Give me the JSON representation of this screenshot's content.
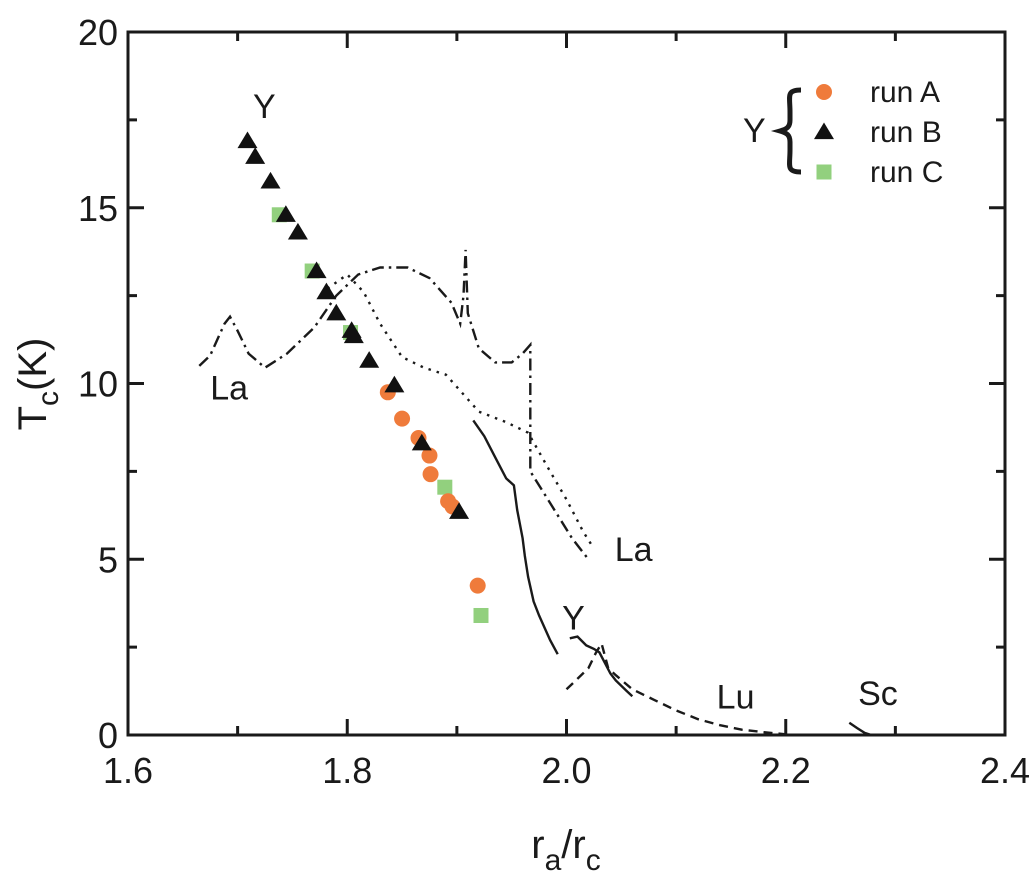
{
  "chart_data": {
    "type": "scatter",
    "title": "",
    "xlabel": {
      "base": "r",
      "base_sub": "a",
      "sep": "/r",
      "sep_sub": "c"
    },
    "ylabel": {
      "base": "T",
      "sub": "c",
      "rest": "(K)"
    },
    "xlim": [
      1.6,
      2.4
    ],
    "ylim": [
      0,
      20
    ],
    "xticks": [
      "1.6",
      "1.8",
      "2.0",
      "2.2",
      "2.4"
    ],
    "yticks": [
      "0",
      "5",
      "10",
      "15",
      "20"
    ],
    "grid": false,
    "legend": {
      "position": "top-right",
      "group_label": "Y",
      "entries": [
        {
          "name": "run A",
          "series_index": 0
        },
        {
          "name": "run B",
          "series_index": 1
        },
        {
          "name": "run C",
          "series_index": 2
        }
      ]
    },
    "series": [
      {
        "name": "run A",
        "marker": "circle",
        "color": "#ef7b3b",
        "points": [
          [
            1.837,
            9.75
          ],
          [
            1.85,
            9.0
          ],
          [
            1.865,
            8.45
          ],
          [
            1.875,
            7.95
          ],
          [
            1.876,
            7.42
          ],
          [
            1.892,
            6.65
          ],
          [
            1.896,
            6.5
          ],
          [
            1.919,
            4.25
          ]
        ]
      },
      {
        "name": "run B",
        "marker": "triangle",
        "color": "#111111",
        "points": [
          [
            1.709,
            16.9
          ],
          [
            1.716,
            16.45
          ],
          [
            1.73,
            15.75
          ],
          [
            1.744,
            14.8
          ],
          [
            1.755,
            14.3
          ],
          [
            1.772,
            13.2
          ],
          [
            1.781,
            12.6
          ],
          [
            1.79,
            12.0
          ],
          [
            1.804,
            11.5
          ],
          [
            1.806,
            11.35
          ],
          [
            1.82,
            10.65
          ],
          [
            1.843,
            9.95
          ],
          [
            1.868,
            8.3
          ],
          [
            1.902,
            6.35
          ]
        ]
      },
      {
        "name": "run C",
        "marker": "square",
        "color": "#92d07e",
        "points": [
          [
            1.738,
            14.8
          ],
          [
            1.768,
            13.2
          ],
          [
            1.803,
            11.45
          ],
          [
            1.889,
            7.05
          ],
          [
            1.922,
            3.4
          ]
        ]
      }
    ],
    "curves": [
      {
        "id": "la-dashdot",
        "style": "dashdot",
        "points": [
          [
            1.665,
            10.5
          ],
          [
            1.675,
            10.8
          ],
          [
            1.688,
            11.7
          ],
          [
            1.693,
            11.9
          ],
          [
            1.7,
            11.5
          ],
          [
            1.71,
            10.85
          ],
          [
            1.725,
            10.45
          ],
          [
            1.745,
            10.85
          ],
          [
            1.77,
            11.6
          ],
          [
            1.79,
            12.5
          ],
          [
            1.81,
            13.1
          ],
          [
            1.83,
            13.3
          ],
          [
            1.855,
            13.3
          ],
          [
            1.875,
            13.0
          ],
          [
            1.895,
            12.3
          ],
          [
            1.903,
            11.7
          ],
          [
            1.906,
            12.5
          ],
          [
            1.908,
            13.8
          ],
          [
            1.91,
            12.0
          ],
          [
            1.92,
            11.0
          ],
          [
            1.935,
            10.6
          ],
          [
            1.95,
            10.6
          ],
          [
            1.96,
            10.85
          ],
          [
            1.967,
            11.1
          ],
          [
            1.967,
            7.5
          ],
          [
            1.985,
            6.6
          ],
          [
            2.005,
            5.6
          ],
          [
            2.02,
            5.0
          ]
        ]
      },
      {
        "id": "la-dotted",
        "style": "dotted",
        "points": [
          [
            1.782,
            12.7
          ],
          [
            1.8,
            13.1
          ],
          [
            1.815,
            12.6
          ],
          [
            1.83,
            11.7
          ],
          [
            1.85,
            10.75
          ],
          [
            1.87,
            10.45
          ],
          [
            1.89,
            10.25
          ],
          [
            1.9,
            9.9
          ],
          [
            1.92,
            9.2
          ],
          [
            1.945,
            8.9
          ],
          [
            1.965,
            8.6
          ],
          [
            1.985,
            7.5
          ],
          [
            2.0,
            6.7
          ],
          [
            2.015,
            5.8
          ],
          [
            2.025,
            5.3
          ]
        ]
      },
      {
        "id": "y-solid",
        "style": "solid",
        "points": [
          [
            1.915,
            8.95
          ],
          [
            1.925,
            8.5
          ],
          [
            1.935,
            7.9
          ],
          [
            1.945,
            7.3
          ],
          [
            1.952,
            7.1
          ],
          [
            1.955,
            6.4
          ],
          [
            1.96,
            5.6
          ],
          [
            1.962,
            5.1
          ],
          [
            1.965,
            4.5
          ],
          [
            1.97,
            3.8
          ],
          [
            1.975,
            3.4
          ],
          [
            1.985,
            2.7
          ],
          [
            1.992,
            2.3
          ]
        ]
      },
      {
        "id": "y-solid-2",
        "style": "solid",
        "points": [
          [
            2.003,
            2.75
          ],
          [
            2.01,
            2.8
          ],
          [
            2.018,
            2.55
          ],
          [
            2.025,
            2.45
          ],
          [
            2.03,
            2.35
          ],
          [
            2.035,
            2.05
          ],
          [
            2.04,
            1.75
          ],
          [
            2.045,
            1.55
          ],
          [
            2.055,
            1.25
          ],
          [
            2.06,
            1.1
          ]
        ]
      },
      {
        "id": "lu-dashed",
        "style": "dashed",
        "points": [
          [
            2.0,
            1.3
          ],
          [
            2.01,
            1.6
          ],
          [
            2.02,
            1.9
          ],
          [
            2.027,
            2.35
          ],
          [
            2.032,
            2.6
          ],
          [
            2.038,
            1.9
          ],
          [
            2.045,
            1.7
          ],
          [
            2.06,
            1.3
          ],
          [
            2.08,
            1.0
          ],
          [
            2.1,
            0.7
          ],
          [
            2.12,
            0.45
          ],
          [
            2.14,
            0.28
          ],
          [
            2.16,
            0.15
          ],
          [
            2.18,
            0.08
          ],
          [
            2.2,
            0.02
          ]
        ]
      },
      {
        "id": "sc-solid",
        "style": "solid",
        "points": [
          [
            2.258,
            0.35
          ],
          [
            2.265,
            0.2
          ],
          [
            2.272,
            0.06
          ],
          [
            2.278,
            0.0
          ]
        ]
      }
    ],
    "annotations": [
      {
        "text": "Y",
        "x": 1.714,
        "y": 17.55
      },
      {
        "text": "La",
        "x": 1.675,
        "y": 9.55
      },
      {
        "text": "La",
        "x": 2.044,
        "y": 4.95
      },
      {
        "text": "Y",
        "x": 1.996,
        "y": 3.0
      },
      {
        "text": "Lu",
        "x": 2.137,
        "y": 0.75
      },
      {
        "text": "Sc",
        "x": 2.266,
        "y": 0.85
      }
    ]
  }
}
